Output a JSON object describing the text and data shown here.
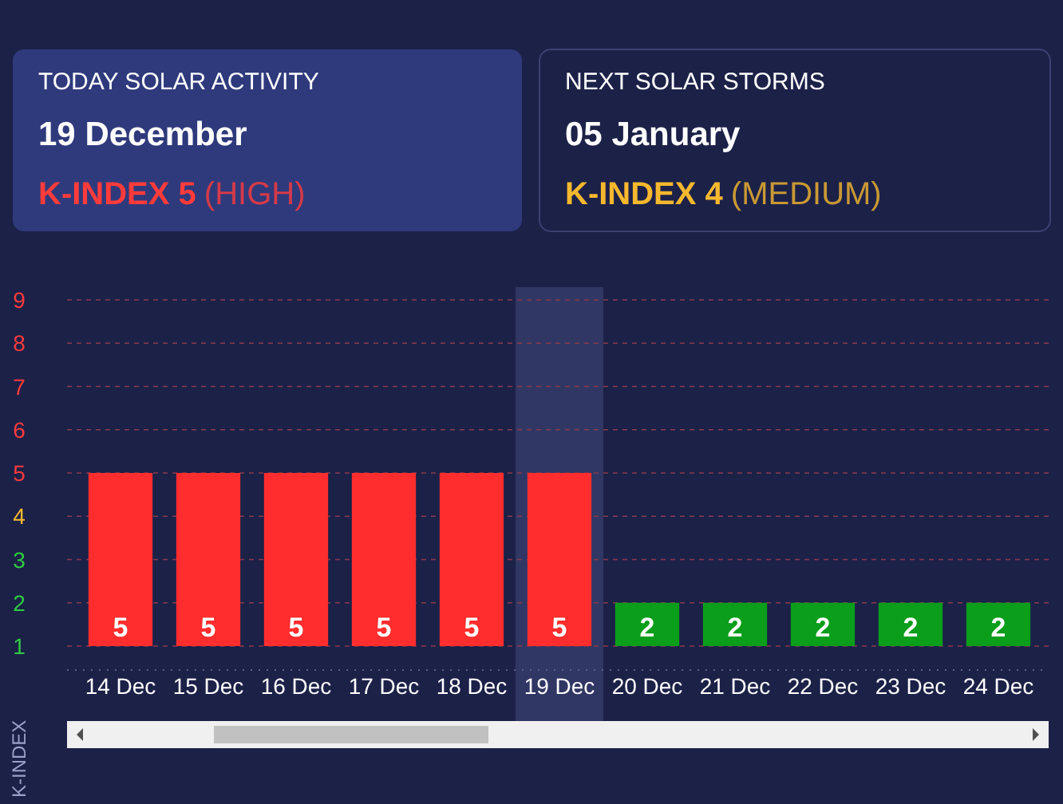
{
  "chart_data": [
    {
      "type": "other",
      "annotations": [
        "TODAY SOLAR ACTIVITY",
        "19 December",
        "K-INDEX 5",
        "(HIGH)"
      ],
      "color": "#ff3b3b"
    },
    {
      "type": "other",
      "annotations": [
        "NEXT SOLAR STORMS",
        "05 January",
        "K-INDEX 4",
        "(MEDIUM)"
      ],
      "color": "#f5b82e"
    },
    {
      "type": "bar",
      "ylabel": "K-INDEX",
      "categories": [
        "14 Dec",
        "15 Dec",
        "16 Dec",
        "17 Dec",
        "18 Dec",
        "19 Dec",
        "20 Dec",
        "21 Dec",
        "22 Dec",
        "23 Dec",
        "24 Dec"
      ],
      "values": [
        5,
        5,
        5,
        5,
        5,
        5,
        2,
        2,
        2,
        2,
        2
      ],
      "colors": [
        "#ff2d2d",
        "#ff2d2d",
        "#ff2d2d",
        "#ff2d2d",
        "#ff2d2d",
        "#ff2d2d",
        "#0a9e1a",
        "#0a9e1a",
        "#0a9e1a",
        "#0a9e1a",
        "#0a9e1a"
      ],
      "ylim": [
        1,
        9
      ],
      "yticks": [
        1,
        2,
        3,
        4,
        5,
        6,
        7,
        8,
        9
      ],
      "grid": "y",
      "data_labels": true,
      "bands": [
        {
          "axis": "x",
          "from": "19 Dec",
          "to": "19 Dec",
          "color": "#3a4270"
        }
      ]
    }
  ]
}
